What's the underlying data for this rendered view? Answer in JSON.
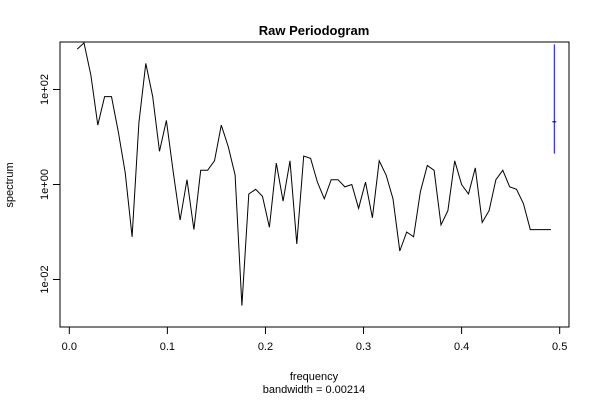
{
  "chart_data": {
    "type": "line",
    "title": "Raw Periodogram",
    "xlabel": "frequency",
    "ylabel": "spectrum",
    "sublabel": "bandwidth = 0.00214",
    "y_scale": "log10",
    "xlim": [
      -0.0095,
      0.5095
    ],
    "ylim_log10": [
      -3.0,
      3.0
    ],
    "x_ticks": [
      0.0,
      0.1,
      0.2,
      0.3,
      0.4,
      0.5
    ],
    "x_tick_labels": [
      "0.0",
      "0.1",
      "0.2",
      "0.3",
      "0.4",
      "0.5"
    ],
    "y_ticks_log10": [
      -2,
      0,
      2
    ],
    "y_tick_labels": [
      "1e-02",
      "1e+00",
      "1e+02"
    ],
    "series": [
      {
        "color": "#000000",
        "x": [
          0.008,
          0.015,
          0.022,
          0.029,
          0.036,
          0.043,
          0.05,
          0.057,
          0.064,
          0.071,
          0.078,
          0.085,
          0.092,
          0.099,
          0.106,
          0.113,
          0.12,
          0.127,
          0.134,
          0.141,
          0.148,
          0.155,
          0.162,
          0.169,
          0.176,
          0.183,
          0.19,
          0.197,
          0.204,
          0.211,
          0.218,
          0.225,
          0.232,
          0.239,
          0.246,
          0.253,
          0.26,
          0.267,
          0.274,
          0.281,
          0.288,
          0.295,
          0.302,
          0.309,
          0.316,
          0.323,
          0.33,
          0.337,
          0.344,
          0.351,
          0.358,
          0.365,
          0.372,
          0.379,
          0.386,
          0.393,
          0.4,
          0.407,
          0.414,
          0.421,
          0.428,
          0.435,
          0.442,
          0.449,
          0.456,
          0.463,
          0.47,
          0.477,
          0.484,
          0.491
        ],
        "log10_y": [
          2.85,
          2.98,
          2.3,
          1.25,
          1.85,
          1.85,
          1.1,
          0.25,
          -1.1,
          1.3,
          2.55,
          1.85,
          0.7,
          1.35,
          0.25,
          -0.75,
          0.1,
          -0.95,
          0.3,
          0.3,
          0.5,
          1.25,
          0.8,
          0.2,
          -2.55,
          -0.2,
          -0.1,
          -0.25,
          -0.9,
          0.45,
          -0.35,
          0.5,
          -1.25,
          0.6,
          0.55,
          0.05,
          -0.3,
          0.1,
          0.1,
          -0.05,
          0.0,
          -0.5,
          0.05,
          -0.7,
          0.5,
          0.2,
          -0.3,
          -1.4,
          -1.0,
          -1.1,
          -0.15,
          0.4,
          0.3,
          -0.85,
          -0.55,
          0.5,
          0.0,
          -0.2,
          0.35,
          -0.8,
          -0.55,
          0.1,
          0.3,
          -0.05,
          -0.1,
          -0.4,
          -0.95,
          -0.95,
          -0.95,
          -0.95
        ]
      }
    ],
    "confidence_bar": {
      "color": "#0000ff",
      "x": 0.4945,
      "low_log10": 0.65,
      "high_log10": 2.95,
      "center_log10": 1.32
    }
  }
}
